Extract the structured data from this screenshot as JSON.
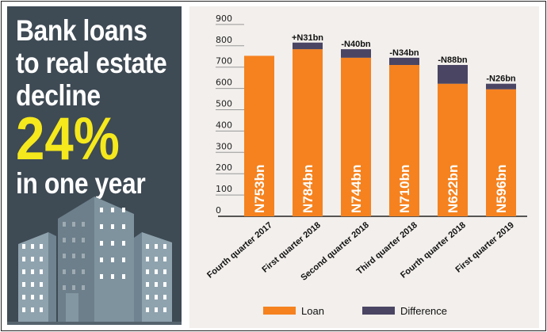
{
  "headline": {
    "line1": "Bank loans",
    "line2": "to real estate",
    "line3": "decline",
    "percent": "24%",
    "line4": "in one year"
  },
  "colors": {
    "loan": "#f5821f",
    "difference": "#4a4563",
    "panel": "#3e4a54",
    "highlight": "#f5e81c"
  },
  "chart_data": {
    "type": "bar",
    "stacked": true,
    "title": "",
    "xlabel": "",
    "ylabel": "",
    "ylim": [
      0,
      900
    ],
    "yticks": [
      0,
      100,
      200,
      300,
      400,
      500,
      600,
      700,
      800,
      900
    ],
    "categories": [
      "Fourth quarter 2017",
      "First quarter 2018",
      "Second quarter 2018",
      "Third quarter 2018",
      "Fourth quarter 2018",
      "First quarter 2019"
    ],
    "series": [
      {
        "name": "Loan",
        "values": [
          753,
          784,
          744,
          710,
          622,
          596
        ]
      },
      {
        "name": "Difference",
        "values": [
          0,
          31,
          40,
          34,
          88,
          26
        ]
      }
    ],
    "bar_labels": [
      "N753bn",
      "N784bn",
      "N744bn",
      "N710bn",
      "N622bn",
      "N596bn"
    ],
    "difference_labels": [
      "",
      "+N31bn",
      "-N40bn",
      "-N34bn",
      "-N88bn",
      "-N26bn"
    ],
    "legend": [
      "Loan",
      "Difference"
    ],
    "legend_position": "bottom"
  }
}
